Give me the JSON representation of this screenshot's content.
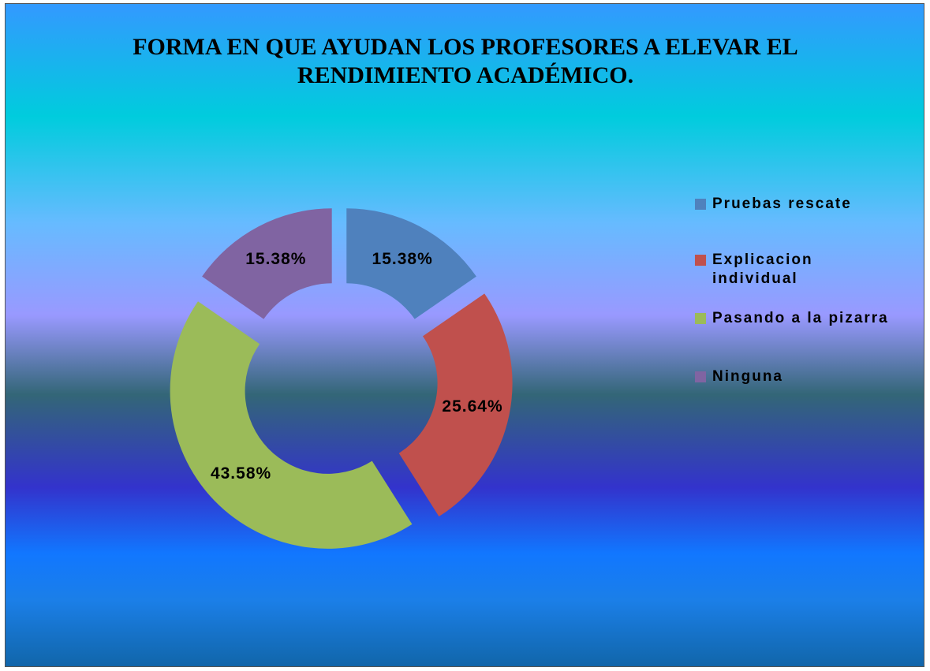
{
  "chart_data": {
    "type": "donut",
    "title": "FORMA EN QUE AYUDAN LOS PROFESORES A ELEVAR EL RENDIMIENTO ACADÉMICO.",
    "categories": [
      "Pruebas rescate",
      "Explicacion individual",
      "Pasando a la pizarra",
      "Ninguna"
    ],
    "values": [
      15.38,
      25.64,
      43.58,
      15.38
    ],
    "value_labels": [
      "15.38%",
      "25.64%",
      "43.58%",
      "15.38%"
    ],
    "colors": [
      "#4f81bd",
      "#c0504d",
      "#9bbb59",
      "#8064a2"
    ],
    "legend": "right"
  }
}
